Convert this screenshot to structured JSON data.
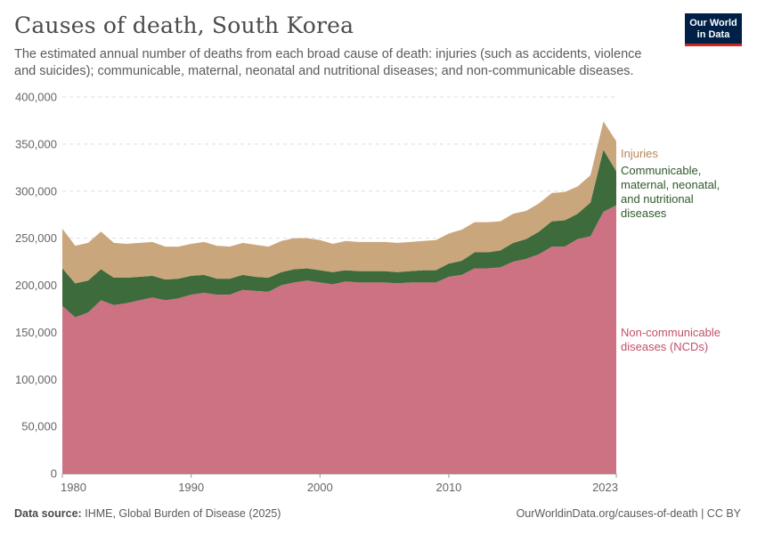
{
  "header": {
    "title": "Causes of death, South Korea",
    "subtitle": "The estimated annual number of deaths from each broad cause of death: injuries (such as accidents, violence and suicides); communicable, maternal, neonatal and nutritional diseases; and non-communicable diseases."
  },
  "logo": {
    "line1": "Our World",
    "line2": "in Data"
  },
  "footer": {
    "source_label": "Data source:",
    "source_text": "IHME, Global Burden of Disease (2025)",
    "url": "OurWorldinData.org/causes-of-death | CC BY"
  },
  "colors": {
    "ncd": "#cd7283",
    "communicable": "#3e6b3b",
    "injuries": "#caa67d",
    "label_ncd": "#c2506a",
    "label_communicable": "#2e5a2a",
    "label_injuries": "#b8875a"
  },
  "chart_data": {
    "type": "area",
    "stacked": true,
    "x": [
      1980,
      1981,
      1982,
      1983,
      1984,
      1985,
      1986,
      1987,
      1988,
      1989,
      1990,
      1991,
      1992,
      1993,
      1994,
      1995,
      1996,
      1997,
      1998,
      1999,
      2000,
      2001,
      2002,
      2003,
      2004,
      2005,
      2006,
      2007,
      2008,
      2009,
      2010,
      2011,
      2012,
      2013,
      2014,
      2015,
      2016,
      2017,
      2018,
      2019,
      2020,
      2021,
      2022,
      2023
    ],
    "series": [
      {
        "name": "Non-communicable diseases (NCDs)",
        "key": "ncd",
        "values": [
          178000,
          166000,
          171000,
          184000,
          179000,
          181000,
          184000,
          187000,
          184000,
          186000,
          190000,
          192000,
          190000,
          190000,
          195000,
          194000,
          193000,
          200000,
          203000,
          205000,
          203000,
          201000,
          204000,
          203000,
          203000,
          203000,
          202000,
          203000,
          203000,
          203000,
          209000,
          211000,
          218000,
          218000,
          219000,
          225000,
          228000,
          233000,
          241000,
          241000,
          249000,
          252000,
          278000,
          285000
        ]
      },
      {
        "name": "Communicable, maternal, neonatal, and nutritional diseases",
        "key": "communicable",
        "values": [
          40000,
          36000,
          34000,
          33000,
          29000,
          27000,
          25000,
          23000,
          22000,
          21000,
          20000,
          19000,
          17000,
          17000,
          16000,
          15000,
          15000,
          14000,
          14000,
          13000,
          13000,
          13000,
          12000,
          12000,
          12000,
          12000,
          12000,
          12000,
          13000,
          13000,
          14000,
          15000,
          17000,
          17000,
          18000,
          20000,
          21000,
          24000,
          27000,
          28000,
          27000,
          36000,
          66000,
          36000
        ]
      },
      {
        "name": "Injuries",
        "key": "injuries",
        "values": [
          42000,
          40000,
          40000,
          40000,
          37000,
          36000,
          36000,
          36000,
          35000,
          34000,
          34000,
          35000,
          35000,
          34000,
          34000,
          34000,
          33000,
          33000,
          33000,
          32000,
          32000,
          30000,
          31000,
          31000,
          31000,
          31000,
          31000,
          31000,
          31000,
          32000,
          32000,
          33000,
          32000,
          32000,
          31000,
          31000,
          30000,
          30000,
          30000,
          30000,
          29000,
          29000,
          30000,
          32000
        ]
      }
    ],
    "labels": {
      "injuries": "Injuries",
      "communicable": [
        "Communicable,",
        "maternal, neonatal,",
        "and nutritional",
        "diseases"
      ],
      "ncd": [
        "Non-communicable",
        "diseases (NCDs)"
      ]
    },
    "ylim": [
      0,
      400000
    ],
    "yticks": [
      0,
      50000,
      100000,
      150000,
      200000,
      250000,
      300000,
      350000,
      400000
    ],
    "ytick_labels": [
      "0",
      "50,000",
      "100,000",
      "150,000",
      "200,000",
      "250,000",
      "300,000",
      "350,000",
      "400,000"
    ],
    "xticks": [
      1980,
      1990,
      2000,
      2010,
      2023
    ],
    "xtick_labels": [
      "1980",
      "1990",
      "2000",
      "2010",
      "2023"
    ],
    "grid": true
  }
}
